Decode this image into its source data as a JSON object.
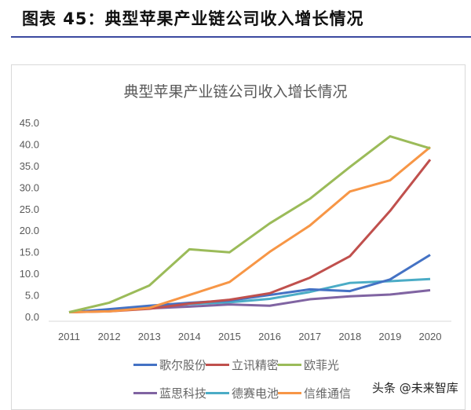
{
  "heading": "图表 45：典型苹果产业链公司收入增长情况",
  "watermark": "头条 @未来智库",
  "chart_data": {
    "type": "line",
    "title": "典型苹果产业链公司收入增长情况",
    "xlabel": "",
    "ylabel": "",
    "categories": [
      "2011",
      "2012",
      "2013",
      "2014",
      "2015",
      "2016",
      "2017",
      "2018",
      "2019",
      "2020"
    ],
    "ylim": [
      0,
      45
    ],
    "yticks": [
      "0.0",
      "5.0",
      "10.0",
      "15.0",
      "20.0",
      "25.0",
      "30.0",
      "35.0",
      "40.0",
      "45.0"
    ],
    "grid": false,
    "legend": "bottom",
    "series": [
      {
        "name": "歌尔股份",
        "color": "#4472c4",
        "values": [
          1.0,
          1.7,
          2.5,
          3.2,
          3.7,
          5.0,
          6.3,
          5.9,
          8.6,
          14.3
        ]
      },
      {
        "name": "立讯精密",
        "color": "#c0504d",
        "values": [
          1.0,
          1.2,
          1.8,
          3.0,
          3.9,
          5.4,
          9.0,
          14.0,
          24.5,
          36.4
        ]
      },
      {
        "name": "欧菲光",
        "color": "#9bbb59",
        "values": [
          1.0,
          3.2,
          7.2,
          15.6,
          14.9,
          21.6,
          27.3,
          34.7,
          41.8,
          39.0
        ]
      },
      {
        "name": "蓝思科技",
        "color": "#8064a2",
        "values": [
          1.0,
          1.4,
          1.9,
          2.3,
          2.8,
          2.5,
          4.0,
          4.7,
          5.1,
          6.1
        ]
      },
      {
        "name": "德赛电池",
        "color": "#4bacc6",
        "values": [
          1.0,
          1.3,
          2.0,
          2.9,
          3.3,
          4.1,
          5.7,
          7.8,
          8.2,
          8.7
        ]
      },
      {
        "name": "信维通信",
        "color": "#f79646",
        "values": [
          1.0,
          1.2,
          2.0,
          5.0,
          8.0,
          15.0,
          21.1,
          29.0,
          31.6,
          39.3
        ]
      }
    ]
  }
}
